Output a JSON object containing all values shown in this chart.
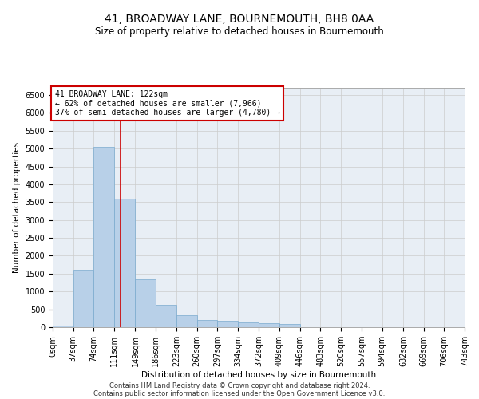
{
  "title": "41, BROADWAY LANE, BOURNEMOUTH, BH8 0AA",
  "subtitle": "Size of property relative to detached houses in Bournemouth",
  "xlabel": "Distribution of detached houses by size in Bournemouth",
  "ylabel": "Number of detached properties",
  "footer_line1": "Contains HM Land Registry data © Crown copyright and database right 2024.",
  "footer_line2": "Contains public sector information licensed under the Open Government Licence v3.0.",
  "annotation_line1": "41 BROADWAY LANE: 122sqm",
  "annotation_line2": "← 62% of detached houses are smaller (7,966)",
  "annotation_line3": "37% of semi-detached houses are larger (4,780) →",
  "property_size": 122,
  "bin_edges": [
    0,
    37,
    74,
    111,
    149,
    186,
    223,
    260,
    297,
    334,
    372,
    409,
    446,
    483,
    520,
    557,
    594,
    632,
    669,
    706,
    743
  ],
  "bar_heights": [
    50,
    1600,
    5050,
    3600,
    1350,
    620,
    330,
    200,
    170,
    130,
    110,
    100,
    0,
    0,
    0,
    0,
    0,
    0,
    0,
    0
  ],
  "bar_color": "#b8d0e8",
  "bar_edge_color": "#7aaace",
  "vline_color": "#cc0000",
  "annotation_box_edge": "#cc0000",
  "annotation_box_face": "#ffffff",
  "grid_color": "#cccccc",
  "background_color": "#e8eef5",
  "ylim": [
    0,
    6700
  ],
  "yticks": [
    0,
    500,
    1000,
    1500,
    2000,
    2500,
    3000,
    3500,
    4000,
    4500,
    5000,
    5500,
    6000,
    6500
  ],
  "title_fontsize": 10,
  "subtitle_fontsize": 8.5,
  "axis_label_fontsize": 7.5,
  "tick_fontsize": 7,
  "annotation_fontsize": 7,
  "footer_fontsize": 6
}
